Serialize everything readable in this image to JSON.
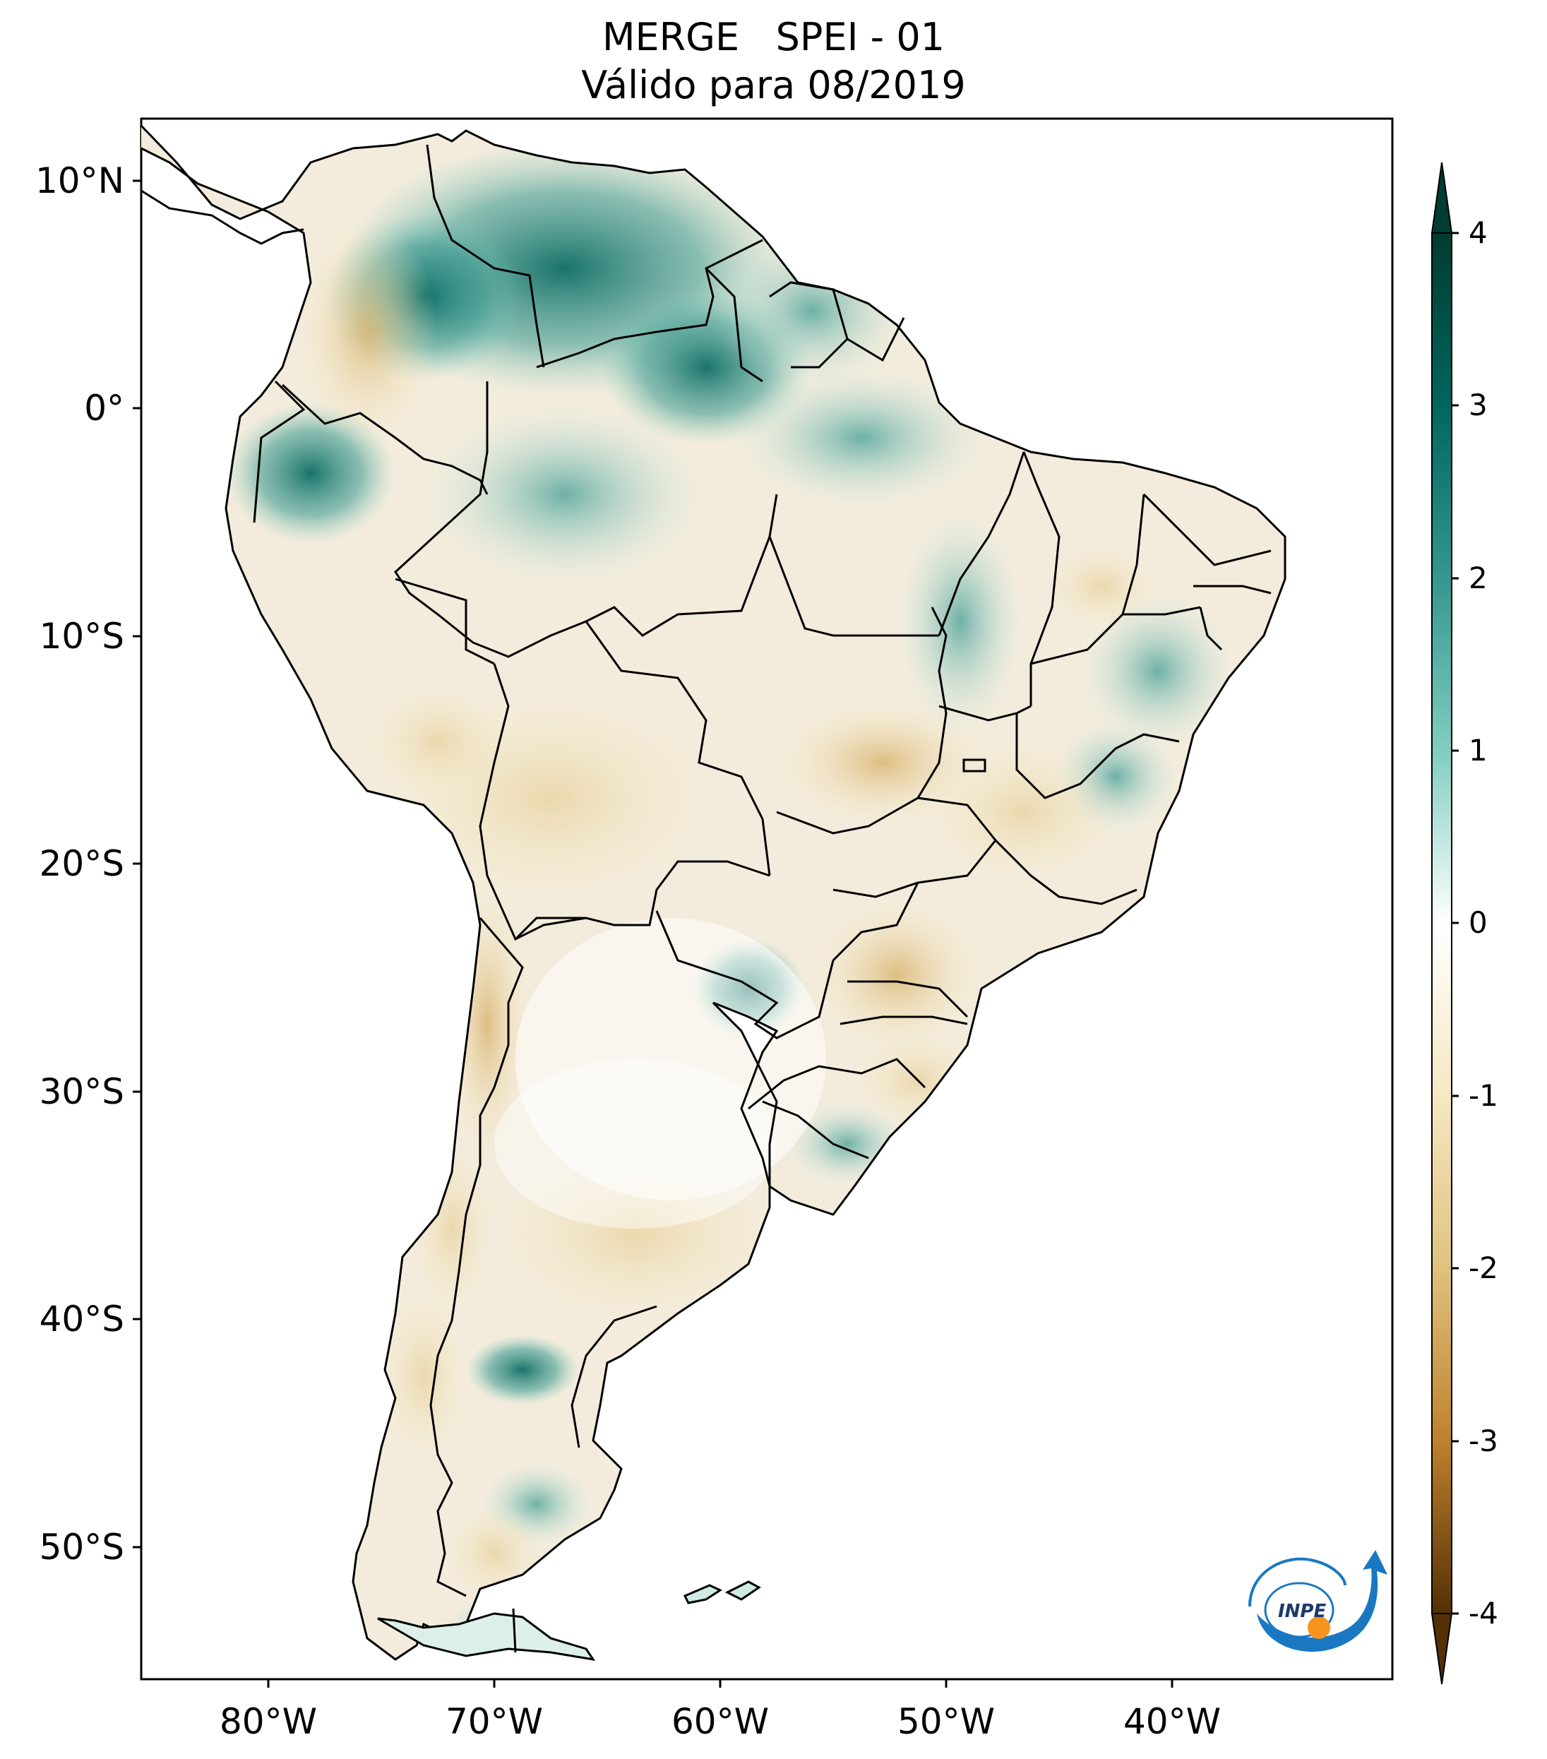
{
  "title": {
    "line1": "MERGE   SPEI - 01",
    "line2": "Válido para 08/2019"
  },
  "latitude_labels": [
    "10°N",
    "0°",
    "10°S",
    "20°S",
    "30°S",
    "40°S",
    "50°S"
  ],
  "longitude_labels": [
    "80°W",
    "70°W",
    "60°W",
    "50°W",
    "40°W"
  ],
  "colorbar": {
    "ticks": [
      "4",
      "3",
      "2",
      "1",
      "0",
      "-1",
      "-2",
      "-3",
      "-4"
    ],
    "colors": {
      "max": "#003c30",
      "high": "#01665e",
      "mid_high": "#35978f",
      "low_pos": "#80cdc1",
      "neutral": "#ffffff",
      "low_neg": "#f6e8c3",
      "mid_low": "#dfc27d",
      "low": "#bf812d",
      "min": "#543005"
    }
  },
  "logo": {
    "text": "INPE",
    "blue": "#1a78c2",
    "orange": "#f7941d"
  }
}
